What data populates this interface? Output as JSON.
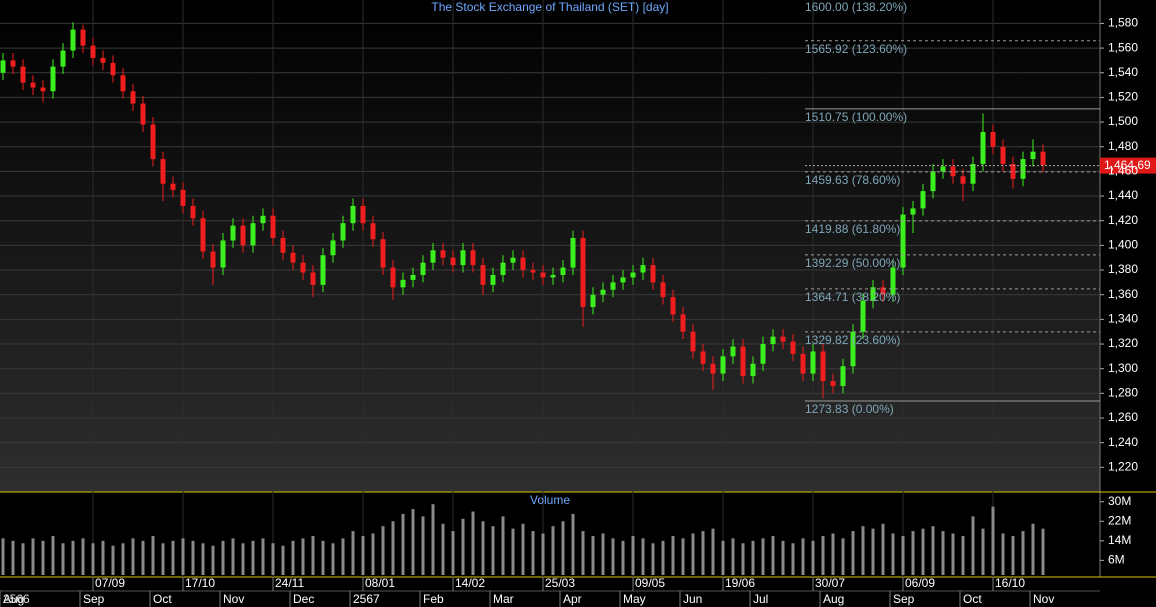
{
  "chart_data": {
    "type": "candlestick",
    "title": "The Stock Exchange of Thailand (SET) [day]",
    "categories": [
      null,
      null,
      null,
      null,
      null,
      null,
      null,
      null,
      null,
      "07/09",
      null,
      null,
      null,
      null,
      null,
      null,
      null,
      null,
      "17/10",
      null,
      null,
      null,
      null,
      null,
      null,
      null,
      null,
      "24/11",
      null,
      null,
      null,
      null,
      null,
      null,
      null,
      null,
      "08/01",
      null,
      null,
      null,
      null,
      null,
      null,
      null,
      null,
      "14/02",
      null,
      null,
      null,
      null,
      null,
      null,
      null,
      null,
      "25/03",
      null,
      null,
      null,
      null,
      null,
      null,
      null,
      null,
      "09/05",
      null,
      null,
      null,
      null,
      null,
      null,
      null,
      null,
      "19/06",
      null,
      null,
      null,
      null,
      null,
      null,
      null,
      null,
      "30/07",
      null,
      null,
      null,
      null,
      null,
      null,
      null,
      null,
      "06/09",
      null,
      null,
      null,
      null,
      null,
      null,
      null,
      null,
      "16/10",
      null,
      null,
      null,
      null,
      null
    ],
    "months": [
      "Aug",
      null,
      null,
      null,
      null,
      null,
      null,
      null,
      "Sep",
      null,
      null,
      null,
      null,
      null,
      null,
      "Oct",
      null,
      null,
      null,
      null,
      null,
      null,
      "Nov",
      null,
      null,
      null,
      null,
      null,
      null,
      "Dec",
      null,
      null,
      null,
      null,
      null,
      "2567",
      null,
      null,
      null,
      null,
      null,
      null,
      "Feb",
      null,
      null,
      null,
      null,
      null,
      null,
      "Mar",
      null,
      null,
      null,
      null,
      null,
      null,
      "Apr",
      null,
      null,
      null,
      null,
      null,
      "May",
      null,
      null,
      null,
      null,
      null,
      "Jun",
      null,
      null,
      null,
      null,
      null,
      null,
      "Jul",
      null,
      null,
      null,
      null,
      null,
      null,
      "Aug",
      null,
      null,
      null,
      null,
      null,
      null,
      "Sep",
      null,
      null,
      null,
      null,
      null,
      null,
      "Oct",
      null,
      null,
      null,
      null,
      null,
      null,
      "Nov",
      null
    ],
    "first_year": "2566",
    "open": [
      1540,
      1550,
      1545,
      1532,
      1528,
      1525,
      1545,
      1558,
      1575,
      1562,
      1552,
      1548,
      1538,
      1525,
      1515,
      1498,
      1470,
      1450,
      1445,
      1432,
      1422,
      1395,
      1382,
      1404,
      1416,
      1400,
      1418,
      1424,
      1406,
      1394,
      1386,
      1378,
      1368,
      1392,
      1404,
      1418,
      1432,
      1418,
      1405,
      1382,
      1366,
      1372,
      1376,
      1386,
      1396,
      1390,
      1384,
      1396,
      1384,
      1368,
      1376,
      1386,
      1390,
      1380,
      1378,
      1374,
      1376,
      1382,
      1406,
      1350,
      1360,
      1364,
      1370,
      1374,
      1378,
      1384,
      1370,
      1358,
      1344,
      1330,
      1314,
      1304,
      1296,
      1310,
      1318,
      1294,
      1304,
      1320,
      1326,
      1322,
      1312,
      1296,
      1314,
      1290,
      1286,
      1302,
      1330,
      1355,
      1366,
      1360,
      1382,
      1425,
      1430,
      1444,
      1460,
      1464,
      1456,
      1450,
      1466,
      1492,
      1480,
      1466,
      1454,
      1470,
      1476
    ],
    "high": [
      1556,
      1556,
      1551,
      1538,
      1534,
      1551,
      1564,
      1581,
      1579,
      1568,
      1558,
      1554,
      1544,
      1531,
      1521,
      1504,
      1476,
      1456,
      1451,
      1438,
      1428,
      1401,
      1410,
      1422,
      1422,
      1424,
      1430,
      1430,
      1412,
      1400,
      1392,
      1384,
      1398,
      1410,
      1424,
      1438,
      1438,
      1424,
      1411,
      1388,
      1378,
      1382,
      1392,
      1402,
      1402,
      1396,
      1402,
      1402,
      1390,
      1382,
      1392,
      1396,
      1396,
      1386,
      1384,
      1382,
      1388,
      1412,
      1412,
      1366,
      1370,
      1376,
      1380,
      1384,
      1390,
      1390,
      1376,
      1364,
      1350,
      1336,
      1320,
      1310,
      1316,
      1324,
      1324,
      1310,
      1326,
      1332,
      1332,
      1328,
      1318,
      1320,
      1320,
      1296,
      1308,
      1336,
      1361,
      1372,
      1372,
      1388,
      1431,
      1436,
      1450,
      1466,
      1470,
      1470,
      1462,
      1472,
      1507,
      1498,
      1486,
      1472,
      1476,
      1486,
      1482
    ],
    "low": [
      1534,
      1539,
      1526,
      1522,
      1516,
      1519,
      1539,
      1552,
      1556,
      1546,
      1542,
      1532,
      1519,
      1509,
      1492,
      1464,
      1436,
      1439,
      1426,
      1416,
      1389,
      1368,
      1376,
      1398,
      1394,
      1394,
      1412,
      1400,
      1388,
      1380,
      1372,
      1358,
      1362,
      1386,
      1398,
      1412,
      1412,
      1399,
      1376,
      1356,
      1360,
      1366,
      1370,
      1380,
      1384,
      1378,
      1378,
      1378,
      1360,
      1362,
      1370,
      1380,
      1374,
      1372,
      1368,
      1368,
      1370,
      1376,
      1334,
      1344,
      1354,
      1358,
      1364,
      1368,
      1372,
      1364,
      1352,
      1338,
      1324,
      1308,
      1298,
      1283,
      1290,
      1304,
      1288,
      1288,
      1298,
      1314,
      1316,
      1306,
      1290,
      1290,
      1276,
      1280,
      1280,
      1296,
      1324,
      1349,
      1354,
      1354,
      1376,
      1410,
      1424,
      1438,
      1454,
      1450,
      1436,
      1444,
      1460,
      1474,
      1460,
      1446,
      1448,
      1464,
      1459
    ],
    "close": [
      1550,
      1545,
      1532,
      1528,
      1525,
      1545,
      1558,
      1575,
      1562,
      1552,
      1548,
      1538,
      1525,
      1515,
      1498,
      1470,
      1450,
      1445,
      1432,
      1422,
      1395,
      1382,
      1404,
      1416,
      1400,
      1418,
      1424,
      1406,
      1394,
      1386,
      1378,
      1368,
      1392,
      1404,
      1418,
      1432,
      1418,
      1405,
      1382,
      1366,
      1372,
      1376,
      1386,
      1396,
      1390,
      1384,
      1396,
      1384,
      1368,
      1376,
      1386,
      1390,
      1380,
      1378,
      1374,
      1376,
      1382,
      1406,
      1350,
      1360,
      1364,
      1370,
      1374,
      1378,
      1384,
      1370,
      1358,
      1344,
      1330,
      1314,
      1304,
      1296,
      1310,
      1318,
      1294,
      1304,
      1320,
      1326,
      1322,
      1312,
      1296,
      1314,
      1290,
      1286,
      1302,
      1330,
      1355,
      1366,
      1360,
      1382,
      1425,
      1430,
      1444,
      1460,
      1464,
      1456,
      1450,
      1466,
      1492,
      1480,
      1466,
      1454,
      1470,
      1476,
      1465
    ],
    "up_color": "#3cf01e",
    "down_color": "#f01e1e",
    "ylim": [
      1200,
      1599
    ],
    "yticks": [
      {
        "value": 1220,
        "label": "1,220"
      },
      {
        "value": 1240,
        "label": "1,240"
      },
      {
        "value": 1260,
        "label": "1,260"
      },
      {
        "value": 1280,
        "label": "1,280"
      },
      {
        "value": 1300,
        "label": "1,300"
      },
      {
        "value": 1320,
        "label": "1,320"
      },
      {
        "value": 1340,
        "label": "1,340"
      },
      {
        "value": 1360,
        "label": "1,360"
      },
      {
        "value": 1380,
        "label": "1,380"
      },
      {
        "value": 1400,
        "label": "1,400"
      },
      {
        "value": 1420,
        "label": "1,420"
      },
      {
        "value": 1440,
        "label": "1,440"
      },
      {
        "value": 1460,
        "label": "1,460"
      },
      {
        "value": 1480,
        "label": "1,480"
      },
      {
        "value": 1500,
        "label": "1,500"
      },
      {
        "value": 1520,
        "label": "1,520"
      },
      {
        "value": 1540,
        "label": "1,540"
      },
      {
        "value": 1560,
        "label": "1,560"
      },
      {
        "value": 1580,
        "label": "1,580"
      }
    ],
    "grid": true,
    "last_price": {
      "value": 1464.69,
      "label": "1,464.69"
    },
    "fib_levels": [
      {
        "value": 1600.0,
        "label": "1600.00 (138.20%)"
      },
      {
        "value": 1565.92,
        "label": "1565.92 (123.60%)"
      },
      {
        "value": 1510.75,
        "label": "1510.75 (100.00%)"
      },
      {
        "value": 1459.63,
        "label": "1459.63 (78.60%)"
      },
      {
        "value": 1419.88,
        "label": "1419.88 (61.80%)"
      },
      {
        "value": 1392.29,
        "label": "1392.29 (50.00%)"
      },
      {
        "value": 1364.71,
        "label": "1364.71 (38.20%)"
      },
      {
        "value": 1329.82,
        "label": "1329.82 (23.60%)"
      },
      {
        "value": 1273.83,
        "label": "1273.83 (0.00%)"
      }
    ],
    "fib_dashed": [
      true,
      true,
      false,
      true,
      true,
      true,
      true,
      true,
      false
    ],
    "volume": {
      "title": "Volume",
      "color": "#8a8a8a",
      "values": [
        15,
        14,
        13,
        15,
        14,
        16,
        13,
        14,
        15,
        13,
        14,
        12,
        13,
        15,
        14,
        16,
        13,
        14,
        15,
        14,
        13,
        12,
        14,
        15,
        13,
        14,
        15,
        13,
        12,
        14,
        15,
        16,
        14,
        13,
        15,
        18,
        16,
        17,
        20,
        22,
        25,
        27,
        24,
        29,
        21,
        18,
        23,
        26,
        22,
        20,
        24,
        19,
        21,
        18,
        17,
        20,
        22,
        25,
        18,
        16,
        17,
        15,
        14,
        16,
        15,
        13,
        14,
        16,
        15,
        17,
        18,
        19,
        14,
        15,
        13,
        14,
        15,
        16,
        14,
        13,
        15,
        14,
        16,
        17,
        15,
        18,
        20,
        19,
        21,
        17,
        16,
        18,
        19,
        20,
        18,
        17,
        16,
        24,
        19,
        28,
        17,
        16,
        18,
        21,
        19
      ],
      "ylim": [
        0,
        34
      ],
      "yticks": [
        {
          "value": 6,
          "label": "6M"
        },
        {
          "value": 14,
          "label": "14M"
        },
        {
          "value": 22,
          "label": "22M"
        },
        {
          "value": 30,
          "label": "30M"
        }
      ]
    }
  }
}
